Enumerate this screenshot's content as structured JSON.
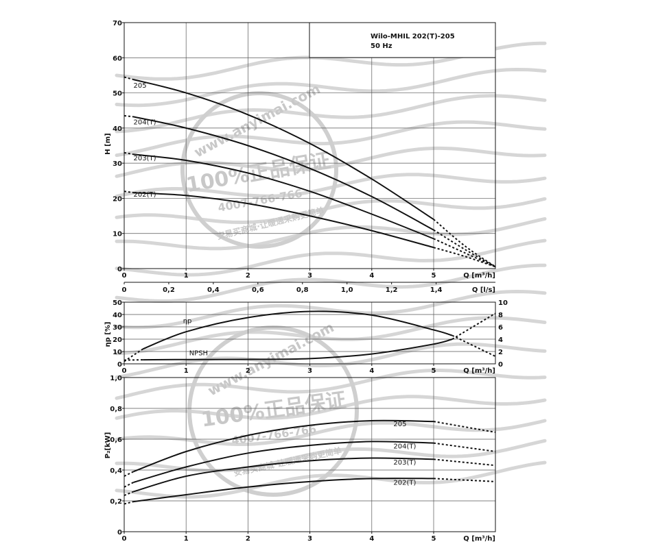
{
  "watermark": {
    "site": "www.anyimai.com",
    "slogan": "100%正品保证",
    "phone": "4007-766-766",
    "tagline": "安易买商城·让暖通采购更简单"
  },
  "chart_data": [
    {
      "type": "line",
      "id": "head",
      "title": "Wilo-MHIL 202(T)-205",
      "subtitle": "50 Hz",
      "ylabel": "H [m]",
      "xlabel": "Q [m³/h]",
      "xlabel2": "Q [l/s]",
      "xlim": [
        0,
        6
      ],
      "ylim": [
        0,
        70
      ],
      "xticks": [
        "0",
        "1",
        "2",
        "3",
        "4",
        "5"
      ],
      "yticks": [
        "0",
        "10",
        "20",
        "30",
        "40",
        "50",
        "60",
        "70"
      ],
      "x2ticks": [
        "0",
        "0,2",
        "0,4",
        "0,6",
        "0,8",
        "1,0",
        "1,2",
        "1,4"
      ],
      "x2ticks_values": [
        0,
        0.2,
        0.4,
        0.6,
        0.8,
        1.0,
        1.2,
        1.4
      ],
      "grid": true,
      "series": [
        {
          "name": "205",
          "solid": [
            [
              0.15,
              53.8
            ],
            [
              1,
              50.0
            ],
            [
              2,
              43.8
            ],
            [
              3,
              35.6
            ],
            [
              4,
              25.5
            ],
            [
              5,
              14.0
            ]
          ],
          "dashed": [
            [
              0,
              54.5
            ],
            [
              0.15,
              53.8
            ]
          ],
          "dashed_end": [
            [
              5,
              14.0
            ],
            [
              5.5,
              6.5
            ],
            [
              6,
              0.5
            ]
          ],
          "label_at": [
            0.15,
            51.5
          ]
        },
        {
          "name": "204(T)",
          "solid": [
            [
              0.15,
              43.2
            ],
            [
              1,
              40.0
            ],
            [
              2,
              35.0
            ],
            [
              3,
              28.5
            ],
            [
              4,
              20.5
            ],
            [
              5,
              11.0
            ]
          ],
          "dashed": [
            [
              0,
              43.5
            ],
            [
              0.15,
              43.2
            ]
          ],
          "dashed_end": [
            [
              5,
              11.0
            ],
            [
              5.5,
              5.5
            ],
            [
              6,
              0.5
            ]
          ],
          "label_at": [
            0.15,
            41.0
          ]
        },
        {
          "name": "203(T)",
          "solid": [
            [
              0.15,
              32.5
            ],
            [
              1,
              30.8
            ],
            [
              2,
              27.2
            ],
            [
              3,
              22.0
            ],
            [
              4,
              15.5
            ],
            [
              5,
              8.5
            ]
          ],
          "dashed": [
            [
              0,
              33.0
            ],
            [
              0.15,
              32.5
            ]
          ],
          "dashed_end": [
            [
              5,
              8.5
            ],
            [
              5.5,
              4.5
            ],
            [
              6,
              0.5
            ]
          ],
          "label_at": [
            0.15,
            30.8
          ]
        },
        {
          "name": "202(T)",
          "solid": [
            [
              0.15,
              21.6
            ],
            [
              1,
              20.8
            ],
            [
              2,
              18.5
            ],
            [
              3,
              15.0
            ],
            [
              4,
              10.8
            ],
            [
              5,
              6.0
            ]
          ],
          "dashed": [
            [
              0,
              22.0
            ],
            [
              0.15,
              21.6
            ]
          ],
          "dashed_end": [
            [
              5,
              6.0
            ],
            [
              5.5,
              3.5
            ],
            [
              6,
              0.5
            ]
          ],
          "label_at": [
            0.15,
            20.5
          ]
        }
      ]
    },
    {
      "type": "line",
      "id": "efficiency",
      "ylabel": "ηp [%]",
      "xlabel": "Q [m³/h]",
      "xlim": [
        0,
        6
      ],
      "ylim": [
        0,
        50
      ],
      "y2lim": [
        0,
        10
      ],
      "xticks": [
        "0",
        "1",
        "2",
        "3",
        "4",
        "5"
      ],
      "yticks": [
        "0",
        "10",
        "20",
        "30",
        "40",
        "50"
      ],
      "y2ticks": [
        "0",
        "2",
        "4",
        "6",
        "8",
        "10"
      ],
      "grid": true,
      "series": [
        {
          "name": "ηp",
          "axis": "left",
          "solid": [
            [
              0.3,
              12
            ],
            [
              1,
              26
            ],
            [
              2,
              37.5
            ],
            [
              3,
              42.5
            ],
            [
              4,
              39.5
            ],
            [
              5,
              27.5
            ],
            [
              5.3,
              23
            ]
          ],
          "dashed": [
            [
              0,
              2
            ],
            [
              0.3,
              12
            ]
          ],
          "dashed_end": [
            [
              5.3,
              23
            ],
            [
              6,
              6
            ]
          ],
          "label_at": [
            0.95,
            33
          ]
        },
        {
          "name": "NPSH",
          "axis": "right",
          "solid": [
            [
              0.3,
              0.65
            ],
            [
              1,
              0.7
            ],
            [
              2,
              0.72
            ],
            [
              3,
              0.85
            ],
            [
              4,
              1.6
            ],
            [
              5,
              3.2
            ],
            [
              5.3,
              4.0
            ]
          ],
          "dashed": [
            [
              0,
              0.6
            ],
            [
              0.3,
              0.65
            ]
          ],
          "dashed_end": [
            [
              5.3,
              4.0
            ],
            [
              6,
              8.2
            ]
          ],
          "label_at": [
            1.05,
            1.4
          ]
        }
      ]
    },
    {
      "type": "line",
      "id": "power",
      "ylabel": "P₂[kW]",
      "xlabel": "Q [m³/h]",
      "xlim": [
        0,
        6
      ],
      "ylim": [
        0,
        1.0
      ],
      "xticks": [
        "0",
        "1",
        "2",
        "3",
        "4",
        "5"
      ],
      "yticks": [
        "0",
        "0,2",
        "0,4",
        "0,6",
        "0,8",
        "1,0"
      ],
      "grid": true,
      "series": [
        {
          "name": "205",
          "solid": [
            [
              0.15,
              0.39
            ],
            [
              1,
              0.52
            ],
            [
              2,
              0.625
            ],
            [
              3,
              0.69
            ],
            [
              4,
              0.72
            ],
            [
              5,
              0.715
            ]
          ],
          "dashed": [
            [
              0,
              0.36
            ],
            [
              0.15,
              0.39
            ]
          ],
          "dashed_end": [
            [
              5,
              0.715
            ],
            [
              6,
              0.645
            ]
          ],
          "label_at": [
            4.35,
            0.685
          ]
        },
        {
          "name": "204(T)",
          "solid": [
            [
              0.15,
              0.32
            ],
            [
              1,
              0.42
            ],
            [
              2,
              0.51
            ],
            [
              3,
              0.56
            ],
            [
              4,
              0.585
            ],
            [
              5,
              0.575
            ]
          ],
          "dashed": [
            [
              0,
              0.29
            ],
            [
              0.15,
              0.32
            ]
          ],
          "dashed_end": [
            [
              5,
              0.575
            ],
            [
              6,
              0.52
            ]
          ],
          "label_at": [
            4.35,
            0.54
          ]
        },
        {
          "name": "203(T)",
          "solid": [
            [
              0.15,
              0.26
            ],
            [
              1,
              0.36
            ],
            [
              2,
              0.42
            ],
            [
              3,
              0.46
            ],
            [
              4,
              0.478
            ],
            [
              5,
              0.47
            ]
          ],
          "dashed": [
            [
              0,
              0.235
            ],
            [
              0.15,
              0.26
            ]
          ],
          "dashed_end": [
            [
              5,
              0.47
            ],
            [
              6,
              0.43
            ]
          ],
          "label_at": [
            4.35,
            0.435
          ]
        },
        {
          "name": "202(T)",
          "solid": [
            [
              0.15,
              0.195
            ],
            [
              1,
              0.24
            ],
            [
              2,
              0.29
            ],
            [
              3,
              0.325
            ],
            [
              4,
              0.345
            ],
            [
              5,
              0.345
            ]
          ],
          "dashed": [
            [
              0,
              0.18
            ],
            [
              0.15,
              0.195
            ]
          ],
          "dashed_end": [
            [
              5,
              0.345
            ],
            [
              6,
              0.325
            ]
          ],
          "label_at": [
            4.35,
            0.305
          ]
        }
      ]
    }
  ]
}
